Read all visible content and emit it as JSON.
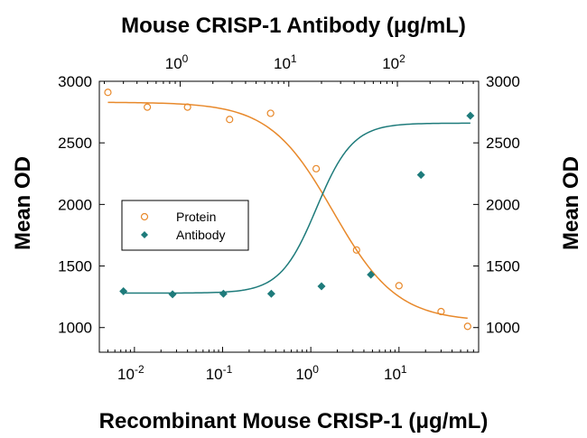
{
  "chart_data": {
    "type": "scatter",
    "title": "Mouse CRISP-1 Antibody (μg/mL)",
    "xlabel": "Recombinant Mouse CRISP-1 (μg/mL)",
    "ylabel_left": "Mean OD",
    "ylabel_right": "Mean OD",
    "x_scale": "log",
    "x_ticks": [
      {
        "base": "10",
        "exp": "-2",
        "value": 0.01
      },
      {
        "base": "10",
        "exp": "-1",
        "value": 0.1
      },
      {
        "base": "10",
        "exp": "0",
        "value": 1
      },
      {
        "base": "10",
        "exp": "1",
        "value": 10
      }
    ],
    "x_top_ticks": [
      {
        "base": "10",
        "exp": "0",
        "value": 1
      },
      {
        "base": "10",
        "exp": "1",
        "value": 10
      },
      {
        "base": "10",
        "exp": "2",
        "value": 100
      }
    ],
    "y_ticks": [
      "1000",
      "1500",
      "2000",
      "2500",
      "3000"
    ],
    "ylim": [
      800,
      3000
    ],
    "legend": {
      "position": "center-left"
    },
    "series": [
      {
        "name": "Protein",
        "axis": "bottom",
        "marker": "open-circle",
        "color": "#E8892B",
        "x": [
          0.005,
          0.014,
          0.04,
          0.12,
          0.35,
          1.15,
          3.3,
          10,
          30,
          60
        ],
        "y": [
          2910,
          2790,
          2790,
          2690,
          2740,
          2290,
          1630,
          1340,
          1130,
          1010
        ],
        "fit": {
          "top": 2830,
          "bottom": 1050,
          "ec50": 1.8,
          "hill": 1.2
        }
      },
      {
        "name": "Antibody",
        "axis": "top",
        "marker": "filled-diamond",
        "color": "#1E7B7B",
        "x": [
          0.3,
          0.85,
          2.5,
          6.9,
          20,
          57,
          165,
          470
        ],
        "y": [
          1295,
          1270,
          1275,
          1275,
          1335,
          1430,
          2240,
          2720
        ],
        "fit": {
          "top": 2660,
          "bottom": 1280,
          "ec50": 18,
          "hill": 2.6
        }
      }
    ]
  }
}
